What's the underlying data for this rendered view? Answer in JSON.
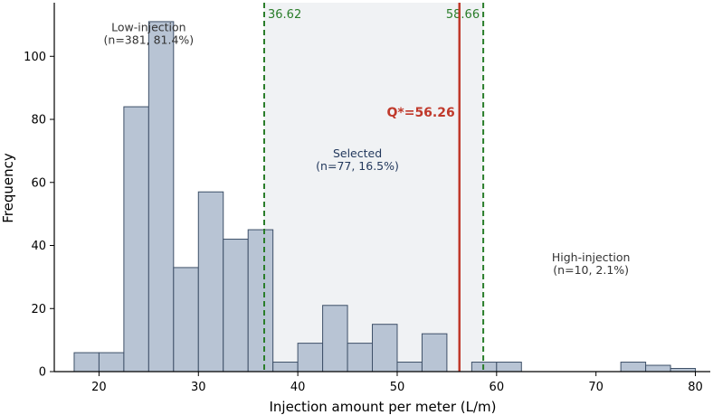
{
  "chart_data": {
    "type": "bar",
    "xlabel": "Injection amount per meter (L/m)",
    "ylabel": "Frequency",
    "xlim": [
      15.5,
      81.5
    ],
    "ylim": [
      0,
      117
    ],
    "xticks": [
      20,
      30,
      40,
      50,
      60,
      70,
      80
    ],
    "yticks": [
      0,
      20,
      40,
      60,
      80,
      100
    ],
    "bin_width": 2.5,
    "bins": [
      {
        "x0": 17.5,
        "x1": 20.0,
        "value": 6
      },
      {
        "x0": 20.0,
        "x1": 22.5,
        "value": 6
      },
      {
        "x0": 22.5,
        "x1": 25.0,
        "value": 84
      },
      {
        "x0": 25.0,
        "x1": 27.5,
        "value": 111
      },
      {
        "x0": 27.5,
        "x1": 30.0,
        "value": 33
      },
      {
        "x0": 30.0,
        "x1": 32.5,
        "value": 57
      },
      {
        "x0": 32.5,
        "x1": 35.0,
        "value": 42
      },
      {
        "x0": 35.0,
        "x1": 37.5,
        "value": 45
      },
      {
        "x0": 37.5,
        "x1": 40.0,
        "value": 3
      },
      {
        "x0": 40.0,
        "x1": 42.5,
        "value": 9
      },
      {
        "x0": 42.5,
        "x1": 45.0,
        "value": 21
      },
      {
        "x0": 45.0,
        "x1": 47.5,
        "value": 9
      },
      {
        "x0": 47.5,
        "x1": 50.0,
        "value": 15
      },
      {
        "x0": 50.0,
        "x1": 52.5,
        "value": 3
      },
      {
        "x0": 52.5,
        "x1": 55.0,
        "value": 12
      },
      {
        "x0": 55.0,
        "x1": 57.5,
        "value": 0
      },
      {
        "x0": 57.5,
        "x1": 60.0,
        "value": 3
      },
      {
        "x0": 60.0,
        "x1": 62.5,
        "value": 3
      },
      {
        "x0": 72.5,
        "x1": 75.0,
        "value": 3
      },
      {
        "x0": 75.0,
        "x1": 77.5,
        "value": 2
      },
      {
        "x0": 77.5,
        "x1": 80.0,
        "value": 1
      }
    ],
    "selected_region": {
      "x0": 36.62,
      "x1": 58.66
    },
    "threshold_lines": [
      {
        "x": 36.62,
        "label": "36.62"
      },
      {
        "x": 58.66,
        "label": "58.66"
      }
    ],
    "q_star": {
      "x": 56.26,
      "label": "Q*=56.26"
    },
    "region_labels": [
      {
        "name": "Low-injection",
        "detail": "(n=381, 81.4%)",
        "x": 25,
        "y": 108
      },
      {
        "name": "Selected",
        "detail": "(n=77, 16.5%)",
        "x": 46,
        "y": 68
      },
      {
        "name": "High-injection",
        "detail": "(n=10, 2.1%)",
        "x": 69.5,
        "y": 35
      }
    ],
    "colors": {
      "bar_fill": "#b8c4d4",
      "bar_edge": "#3e5068",
      "selected_fill": "#e9ecf0",
      "threshold": "#2a7d2a",
      "q_star": "#c0392b",
      "label_selected": "#23395d",
      "axis": "#000000"
    },
    "grid": false
  }
}
